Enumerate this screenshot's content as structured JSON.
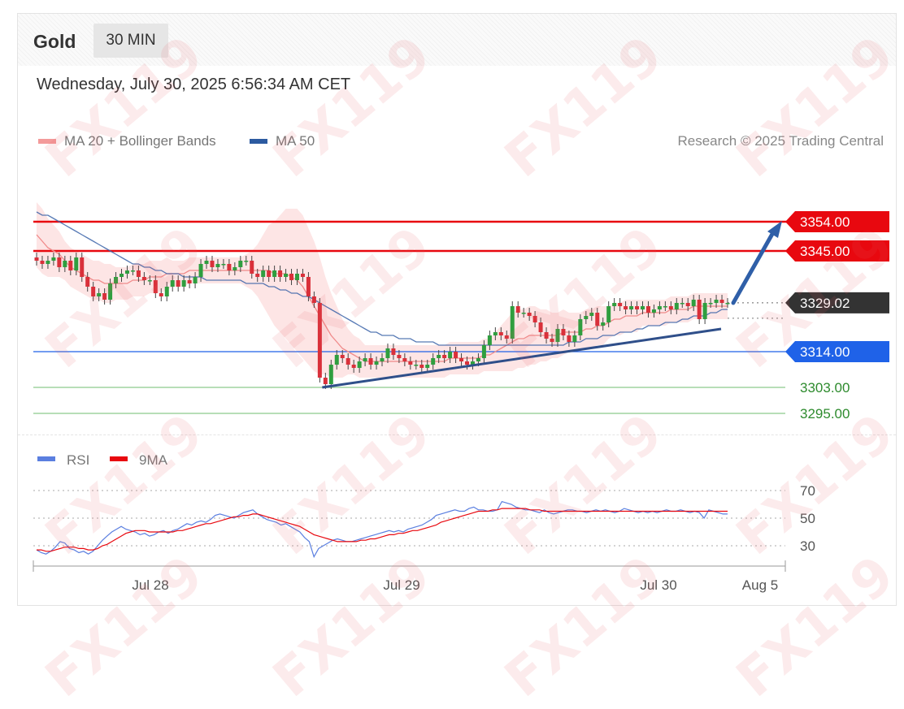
{
  "header": {
    "instrument": "Gold",
    "timeframe": "30 MIN",
    "timestamp": "Wednesday, July 30, 2025 6:56:34 AM CET"
  },
  "legend": {
    "ma20_label": "MA 20 + Bollinger Bands",
    "ma50_label": "MA 50",
    "rsi_label": "RSI",
    "rsi_ma_label": "9MA"
  },
  "credit": "Research © 2025 Trading Central",
  "watermark_text": "FX119",
  "colors": {
    "resistance": "#e8080f",
    "support": "#1f62e8",
    "minor_support": "#2e8b2e",
    "current": "#333333",
    "ma20": "#f08a8a",
    "ma50": "#3a63a8",
    "bollinger_fill": "#fde0e0",
    "candle_up": "#2f9e3f",
    "candle_down": "#d9303a",
    "rsi": "#5b7fe0",
    "rsi_ma": "#e8080f"
  },
  "chart_data": [
    {
      "type": "candlestick",
      "title": "Gold 30 MIN",
      "x_labels": [
        "Jul 28",
        "Jul 29",
        "Jul 30",
        "Aug 5"
      ],
      "ylim": [
        3290,
        3362
      ],
      "price_levels": [
        {
          "value": 3354.0,
          "label": "3354.00",
          "kind": "resistance"
        },
        {
          "value": 3345.0,
          "label": "3345.00",
          "kind": "resistance"
        },
        {
          "value": 3329.02,
          "label": "3329.02",
          "kind": "current"
        },
        {
          "value": 3314.0,
          "label": "3314.00",
          "kind": "support"
        },
        {
          "value": 3303.0,
          "label": "3303.00",
          "kind": "minor_support"
        },
        {
          "value": 3295.0,
          "label": "3295.00",
          "kind": "minor_support"
        }
      ],
      "trendline": {
        "from": {
          "x": "Jul 29",
          "y": 3303
        },
        "to": {
          "x": "Jul 30",
          "y": 3323
        }
      },
      "forecast_arrow": {
        "from": 3329.02,
        "to": 3354.0
      },
      "close_series": [
        3342,
        3341,
        3342,
        3343,
        3340,
        3342,
        3339,
        3343,
        3337,
        3334,
        3331,
        3332,
        3330,
        3335,
        3337,
        3338,
        3339,
        3339,
        3337,
        3336,
        3336,
        3332,
        3331,
        3334,
        3336,
        3334,
        3336,
        3335,
        3337,
        3341,
        3342,
        3340,
        3341,
        3341,
        3339,
        3340,
        3342,
        3342,
        3338,
        3337,
        3339,
        3337,
        3339,
        3337,
        3338,
        3336,
        3338,
        3337,
        3331,
        3329,
        3306,
        3304,
        3310,
        3313,
        3312,
        3310,
        3309,
        3311,
        3312,
        3310,
        3311,
        3312,
        3315,
        3313,
        3312,
        3311,
        3310,
        3310,
        3309,
        3310,
        3312,
        3313,
        3312,
        3314,
        3312,
        3311,
        3310,
        3311,
        3312,
        3316,
        3319,
        3320,
        3319,
        3318,
        3328,
        3326,
        3326,
        3325,
        3323,
        3320,
        3318,
        3317,
        3321,
        3319,
        3317,
        3319,
        3324,
        3325,
        3326,
        3322,
        3323,
        3328,
        3329,
        3328,
        3327,
        3328,
        3327,
        3328,
        3326,
        3327,
        3328,
        3328,
        3327,
        3329,
        3329,
        3328,
        3330,
        3324,
        3329,
        3329,
        3330,
        3329,
        3329
      ],
      "ma20_series": [
        3350,
        3348,
        3346,
        3345,
        3344,
        3342,
        3340,
        3339,
        3338,
        3337,
        3336,
        3336,
        3335,
        3335,
        3335,
        3335,
        3335,
        3336,
        3336,
        3336,
        3337,
        3337,
        3337,
        3338,
        3338,
        3338,
        3338,
        3339,
        3339,
        3339,
        3339,
        3339,
        3339,
        3339,
        3339,
        3339,
        3339,
        3339,
        3339,
        3339,
        3339,
        3339,
        3338,
        3338,
        3338,
        3337,
        3336,
        3334,
        3331,
        3328,
        3325,
        3322,
        3319,
        3317,
        3315,
        3314,
        3313,
        3312,
        3311,
        3311,
        3311,
        3311,
        3311,
        3311,
        3311,
        3311,
        3311,
        3311,
        3311,
        3311,
        3311,
        3311,
        3311,
        3312,
        3312,
        3312,
        3312,
        3312,
        3312,
        3313,
        3313,
        3314,
        3315,
        3316,
        3317,
        3318,
        3318,
        3319,
        3319,
        3319,
        3319,
        3319,
        3319,
        3320,
        3320,
        3320,
        3320,
        3321,
        3321,
        3322,
        3322,
        3323,
        3324,
        3324,
        3325,
        3325,
        3325,
        3326,
        3326,
        3326,
        3326,
        3326,
        3327,
        3327,
        3327,
        3327,
        3328,
        3328,
        3328,
        3328,
        3328,
        3328,
        3328
      ],
      "ma50_series": [
        3357,
        3356,
        3356,
        3355,
        3354,
        3353,
        3352,
        3351,
        3350,
        3349,
        3348,
        3347,
        3346,
        3345,
        3344,
        3343,
        3342,
        3341,
        3341,
        3340,
        3340,
        3339,
        3339,
        3338,
        3338,
        3338,
        3337,
        3337,
        3337,
        3337,
        3336,
        3336,
        3336,
        3336,
        3336,
        3336,
        3336,
        3335,
        3335,
        3335,
        3335,
        3334,
        3334,
        3333,
        3333,
        3332,
        3332,
        3331,
        3331,
        3330,
        3329,
        3328,
        3327,
        3326,
        3325,
        3324,
        3323,
        3322,
        3321,
        3320,
        3320,
        3319,
        3319,
        3319,
        3318,
        3318,
        3318,
        3317,
        3317,
        3317,
        3317,
        3316,
        3316,
        3316,
        3316,
        3316,
        3316,
        3316,
        3316,
        3316,
        3316,
        3316,
        3316,
        3316,
        3316,
        3316,
        3316,
        3316,
        3316,
        3316,
        3316,
        3316,
        3316,
        3316,
        3317,
        3317,
        3317,
        3318,
        3318,
        3318,
        3319,
        3319,
        3319,
        3320,
        3320,
        3320,
        3321,
        3321,
        3322,
        3322,
        3322,
        3323,
        3323,
        3323,
        3324,
        3324,
        3325,
        3325,
        3325,
        3326,
        3326,
        3327,
        3327
      ],
      "bollinger_width": [
        10,
        10,
        9,
        8,
        7,
        6,
        6,
        6,
        6,
        6,
        6,
        6,
        6,
        6,
        5,
        5,
        5,
        5,
        5,
        5,
        5,
        5,
        5,
        5,
        4,
        4,
        4,
        4,
        4,
        4,
        4,
        4,
        4,
        4,
        4,
        4,
        4,
        5,
        6,
        8,
        11,
        14,
        16,
        18,
        20,
        21,
        22,
        22,
        21,
        20,
        18,
        15,
        13,
        11,
        9,
        7,
        6,
        6,
        5,
        5,
        5,
        5,
        5,
        5,
        5,
        5,
        5,
        5,
        5,
        5,
        5,
        5,
        5,
        5,
        5,
        5,
        5,
        5,
        5,
        5,
        5,
        6,
        7,
        8,
        9,
        9,
        9,
        9,
        9,
        8,
        8,
        7,
        7,
        7,
        6,
        6,
        6,
        6,
        6,
        6,
        6,
        5,
        5,
        5,
        5,
        5,
        5,
        4,
        4,
        4,
        4,
        4,
        4,
        4,
        4,
        4,
        4,
        4,
        4,
        4,
        4,
        4,
        4
      ]
    },
    {
      "type": "line",
      "title": "RSI",
      "ylim": [
        20,
        80
      ],
      "reference_levels": [
        70,
        50,
        30
      ],
      "series": [
        {
          "name": "RSI",
          "values": [
            27,
            25,
            24,
            26,
            29,
            33,
            32,
            28,
            27,
            25,
            26,
            24,
            26,
            30,
            34,
            37,
            40,
            42,
            44,
            42,
            41,
            40,
            38,
            39,
            37,
            38,
            40,
            41,
            39,
            41,
            42,
            44,
            46,
            45,
            47,
            48,
            47,
            49,
            52,
            53,
            52,
            51,
            50,
            52,
            54,
            55,
            56,
            53,
            51,
            49,
            48,
            47,
            45,
            46,
            44,
            42,
            40,
            36,
            33,
            22,
            28,
            30,
            32,
            34,
            35,
            34,
            33,
            33,
            34,
            35,
            36,
            37,
            38,
            39,
            40,
            41,
            40,
            41,
            40,
            42,
            43,
            44,
            45,
            47,
            49,
            52,
            53,
            54,
            55,
            56,
            55,
            55,
            57,
            58,
            56,
            56,
            55,
            55,
            56,
            62,
            61,
            60,
            58,
            57,
            56,
            56,
            55,
            54,
            56,
            54,
            53,
            54,
            55,
            56,
            56,
            55,
            55,
            54,
            55,
            56,
            55,
            56,
            55,
            54,
            55,
            57,
            56,
            55,
            54,
            55,
            54,
            55,
            54,
            55,
            56,
            55,
            55,
            56,
            55,
            54,
            55,
            54,
            50,
            56,
            55,
            54,
            53,
            53
          ]
        },
        {
          "name": "9MA",
          "values": [
            27,
            27,
            26,
            26,
            27,
            28,
            29,
            29,
            29,
            28,
            28,
            27,
            27,
            28,
            30,
            31,
            33,
            35,
            37,
            39,
            40,
            41,
            41,
            41,
            40,
            40,
            40,
            40,
            40,
            40,
            41,
            41,
            42,
            43,
            44,
            45,
            46,
            46,
            47,
            48,
            49,
            50,
            51,
            51,
            52,
            52,
            53,
            53,
            52,
            51,
            50,
            49,
            48,
            47,
            46,
            45,
            44,
            42,
            40,
            38,
            37,
            36,
            35,
            34,
            33,
            33,
            33,
            33,
            33,
            34,
            34,
            35,
            35,
            36,
            37,
            38,
            38,
            39,
            39,
            40,
            41,
            41,
            42,
            43,
            44,
            45,
            47,
            48,
            49,
            50,
            51,
            52,
            53,
            54,
            55,
            55,
            55,
            56,
            56,
            57,
            57,
            57,
            57,
            57,
            57,
            56,
            56,
            56,
            55,
            55,
            55,
            55,
            55,
            55,
            55,
            55,
            55,
            55,
            55,
            55,
            55,
            55,
            55,
            55,
            55,
            55,
            55,
            55,
            55,
            55,
            55,
            55,
            55,
            55,
            55,
            55,
            55,
            55,
            55,
            55,
            55,
            55,
            55,
            55,
            55,
            55,
            55,
            55
          ]
        }
      ]
    }
  ]
}
